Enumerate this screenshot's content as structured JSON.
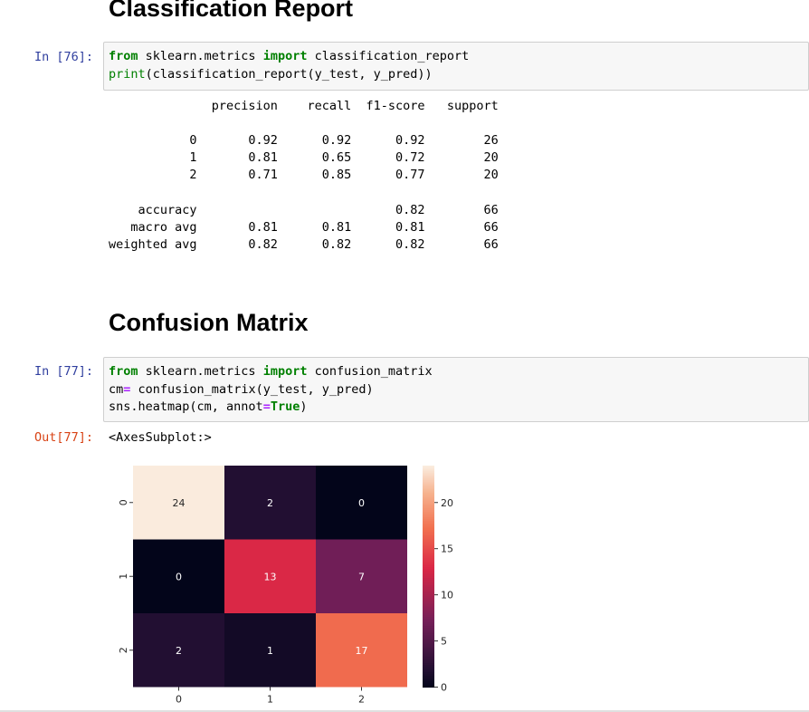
{
  "section1": {
    "heading": "Classification Report"
  },
  "cell76": {
    "prompt": "In [76]:",
    "lines": [
      [
        {
          "t": "from",
          "c": "kw"
        },
        {
          "t": " sklearn.metrics ",
          "c": ""
        },
        {
          "t": "import",
          "c": "kw"
        },
        {
          "t": " classification_report",
          "c": ""
        }
      ],
      [
        {
          "t": "print",
          "c": "kw-plain"
        },
        {
          "t": "(classification_report(y_test, y_pred))",
          "c": ""
        }
      ]
    ],
    "output": "              precision    recall  f1-score   support\n\n           0       0.92      0.92      0.92        26\n           1       0.81      0.65      0.72        20\n           2       0.71      0.85      0.77        20\n\n    accuracy                           0.82        66\n   macro avg       0.81      0.81      0.81        66\nweighted avg       0.82      0.82      0.82        66"
  },
  "section2": {
    "heading": "Confusion Matrix"
  },
  "cell77": {
    "prompt": "In [77]:",
    "lines": [
      [
        {
          "t": "from",
          "c": "kw"
        },
        {
          "t": " sklearn.metrics ",
          "c": ""
        },
        {
          "t": "import",
          "c": "kw"
        },
        {
          "t": " confusion_matrix",
          "c": ""
        }
      ],
      [
        {
          "t": "cm",
          "c": ""
        },
        {
          "t": "=",
          "c": "op"
        },
        {
          "t": " confusion_matrix(y_test, y_pred)",
          "c": ""
        }
      ],
      [
        {
          "t": "sns.heatmap(cm, annot",
          "c": ""
        },
        {
          "t": "=",
          "c": "op"
        },
        {
          "t": "True",
          "c": "kw"
        },
        {
          "t": ")",
          "c": ""
        }
      ]
    ],
    "out_prompt": "Out[77]:",
    "out_text": "<AxesSubplot:>"
  },
  "chart_data": {
    "type": "heatmap",
    "x_categories": [
      "0",
      "1",
      "2"
    ],
    "y_categories": [
      "0",
      "1",
      "2"
    ],
    "values": [
      [
        24,
        2,
        0
      ],
      [
        0,
        13,
        7
      ],
      [
        2,
        1,
        17
      ]
    ],
    "annot": true,
    "colormap": "rocket",
    "vmin": 0,
    "vmax": 24,
    "colorbar_ticks": [
      0,
      5,
      10,
      15,
      20
    ],
    "title": "",
    "xlabel": "",
    "ylabel": ""
  }
}
